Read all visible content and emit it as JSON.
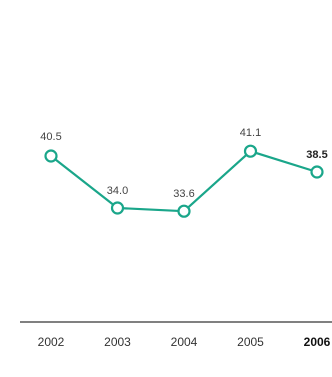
{
  "chart_data": {
    "type": "line",
    "categories": [
      "2002",
      "2003",
      "2004",
      "2005",
      "2006"
    ],
    "values": [
      40.5,
      34.0,
      33.6,
      41.1,
      38.5
    ],
    "data_labels": [
      "40.5",
      "34.0",
      "33.6",
      "41.1",
      "38.5"
    ],
    "highlight_index": 4,
    "title": "",
    "xlabel": "",
    "ylabel": "",
    "ylim": [
      20,
      55
    ],
    "grid": false,
    "legend": "none",
    "line_color": "#1aa68a",
    "marker_fill": "#ffffff",
    "axis_color": "#000000"
  }
}
